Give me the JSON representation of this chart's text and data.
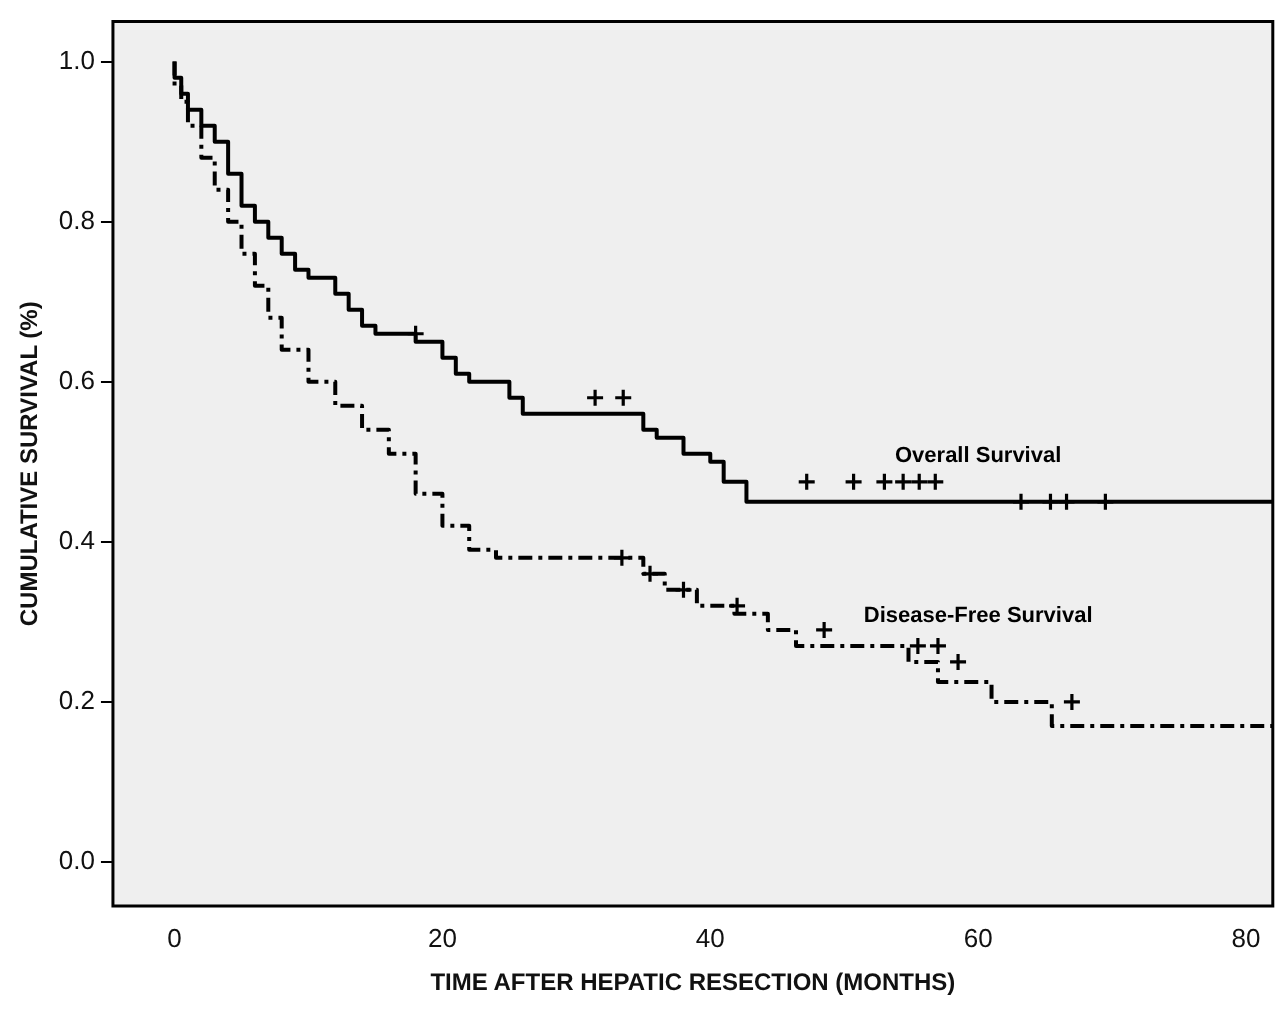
{
  "chart_data": {
    "type": "step",
    "xlabel": "TIME AFTER HEPATIC RESECTION (MONTHS)",
    "ylabel": "CUMULATIVE SURVIVAL (%)",
    "xlim": [
      -4.6,
      82
    ],
    "xticks": [
      0,
      20,
      40,
      60,
      80
    ],
    "ylim": [
      -0.055,
      1.05
    ],
    "yticks": [
      {
        "value": 0,
        "label": "0.0"
      },
      {
        "value": 0.2,
        "label": "0.2"
      },
      {
        "value": 0.4,
        "label": "0.4"
      },
      {
        "value": 0.6,
        "label": "0.6"
      },
      {
        "value": 0.8,
        "label": "0.8"
      },
      {
        "value": 1,
        "label": "1.0"
      }
    ],
    "grid": false,
    "legend": false,
    "series": [
      {
        "name": "Overall Survival",
        "color": "#000000",
        "line_style": "solid",
        "marker": "none",
        "x": [
          0,
          0.5,
          1,
          2,
          3,
          4,
          5,
          6,
          7,
          8,
          9,
          10,
          12,
          13,
          14,
          15,
          18,
          20,
          21,
          22,
          25,
          26,
          35,
          36,
          38,
          40,
          41,
          42.7,
          58,
          82
        ],
        "values": [
          1.0,
          0.98,
          0.96,
          0.94,
          0.92,
          0.9,
          0.86,
          0.82,
          0.8,
          0.78,
          0.76,
          0.74,
          0.73,
          0.71,
          0.69,
          0.67,
          0.66,
          0.65,
          0.63,
          0.61,
          0.6,
          0.58,
          0.56,
          0.54,
          0.53,
          0.51,
          0.5,
          0.475,
          0.45,
          0.45
        ]
      },
      {
        "name": "Disease-Free Survival",
        "color": "#000000",
        "line_style": "dashed",
        "marker": "none",
        "x": [
          0,
          0.5,
          1,
          2,
          3,
          4,
          5,
          6,
          7,
          8,
          10,
          12,
          14,
          16,
          18,
          20,
          22,
          24,
          35,
          36.6,
          39,
          41.8,
          44.3,
          46.4,
          54.8,
          57,
          61,
          65.5,
          81.2,
          82
        ],
        "values": [
          1.0,
          0.97,
          0.95,
          0.92,
          0.88,
          0.84,
          0.8,
          0.76,
          0.72,
          0.68,
          0.64,
          0.6,
          0.57,
          0.54,
          0.51,
          0.46,
          0.42,
          0.39,
          0.38,
          0.36,
          0.34,
          0.32,
          0.31,
          0.29,
          0.27,
          0.25,
          0.225,
          0.2,
          0.17,
          0.17
        ]
      },
      {
        "type": "scatter",
        "color": "#000000",
        "marker": "cross",
        "x": [
          18,
          31.4,
          33.5,
          47.2,
          50.7,
          53,
          54.4,
          55.6,
          56.8,
          63.2,
          65.4,
          66.6,
          69.5
        ],
        "values": [
          0.66,
          0.58,
          0.58,
          0.475,
          0.475,
          0.475,
          0.475,
          0.475,
          0.475,
          0.45,
          0.45,
          0.45,
          0.45
        ]
      },
      {
        "type": "scatter",
        "color": "#000000",
        "marker": "cross",
        "x": [
          33.4,
          35.5,
          38,
          42,
          48.5,
          55.5,
          57,
          58.5,
          67
        ],
        "values": [
          0.38,
          0.36,
          0.34,
          0.32,
          0.29,
          0.27,
          0.27,
          0.25,
          0.2
        ]
      }
    ]
  }
}
